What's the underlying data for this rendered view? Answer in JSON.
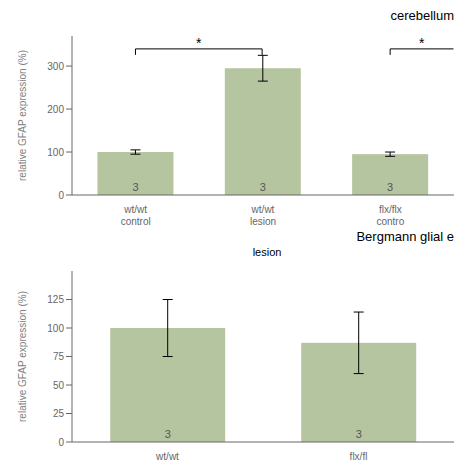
{
  "chart_data": [
    {
      "type": "bar",
      "title": "cerebellum",
      "ylabel": "relative GFAP expression (%)",
      "categories": [
        "wt/wt\ncontrol",
        "wt/wt\nlesion",
        "flx/flx\ncontro"
      ],
      "values": [
        100,
        295,
        95
      ],
      "errors": [
        5,
        30,
        5
      ],
      "ns": [
        3,
        3,
        3
      ],
      "color": "#b5c5a0",
      "ylim": [
        0,
        370
      ],
      "yticks": [
        0,
        100,
        200,
        300
      ],
      "grid": false,
      "annotations": [
        {
          "text": "*",
          "from": 0,
          "to": 1,
          "y": 340
        },
        {
          "text": "*",
          "from": 2,
          "to": null,
          "y": 340
        }
      ]
    },
    {
      "type": "bar",
      "title": "Bergmann glial e",
      "subtitle": "lesion",
      "ylabel": "relative GFAP expression (%)",
      "categories": [
        "wt/wt",
        "flx/fl"
      ],
      "values": [
        100,
        87
      ],
      "errors": [
        25,
        27
      ],
      "ns": [
        3,
        3
      ],
      "color": "#b5c5a0",
      "ylim": [
        0,
        150
      ],
      "yticks": [
        0,
        25,
        50,
        75,
        100,
        125
      ],
      "grid": false
    }
  ]
}
